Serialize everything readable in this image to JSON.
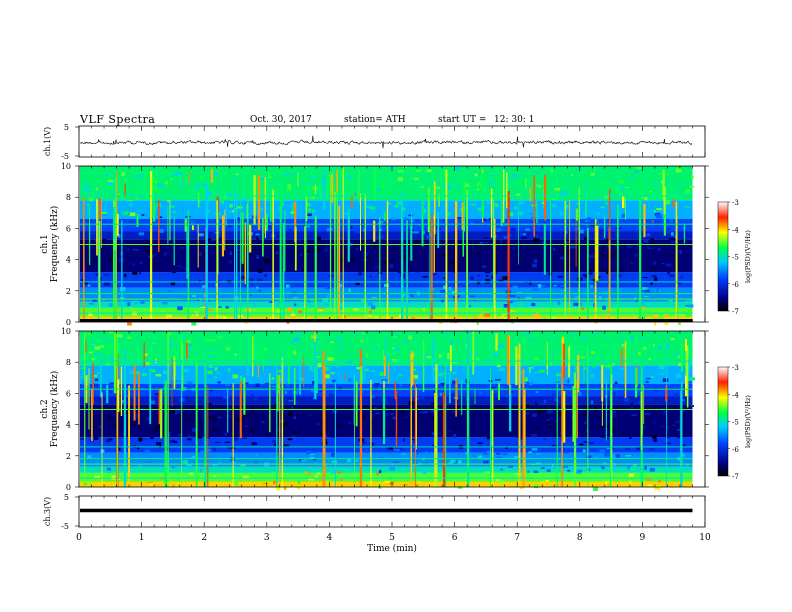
{
  "header": {
    "title": "VLF  Spectra",
    "date": "Oct. 30, 2017",
    "station": "station= ATH",
    "start_label": "start  UT  =",
    "start_time": "12: 30: 1"
  },
  "chart_data": [
    {
      "type": "line",
      "panel": "waveform ch1",
      "ylabel": "ch.1(V)",
      "ylim": [
        -5,
        5
      ],
      "yticks": [
        "5",
        "-5"
      ],
      "xlim": [
        0,
        10
      ],
      "series": [
        {
          "color": "#000000",
          "baseline": 0,
          "amplitude": 0.6
        }
      ]
    },
    {
      "type": "heatmap",
      "panel": "spectrogram ch1",
      "ylabel": "Frequency (kHz)",
      "channel_label": "ch.1",
      "ylim": [
        0,
        10
      ],
      "yticks": [
        "0",
        "2",
        "4",
        "6",
        "8",
        "10"
      ],
      "xlim": [
        0,
        10
      ],
      "colorbar": {
        "label": "log(PSD)(V²/Hz)",
        "range": [
          -7,
          -3
        ],
        "ticks": [
          "-3",
          "-4",
          "-5",
          "-6",
          "-7"
        ]
      }
    },
    {
      "type": "heatmap",
      "panel": "spectrogram ch2",
      "ylabel": "Frequency (kHz)",
      "channel_label": "ch.2",
      "ylim": [
        0,
        10
      ],
      "yticks": [
        "0",
        "2",
        "4",
        "6",
        "8",
        "10"
      ],
      "xlim": [
        0,
        10
      ],
      "colorbar": {
        "label": "log(PSD)(V²/Hz)",
        "range": [
          -7,
          -3
        ],
        "ticks": [
          "-3",
          "-4",
          "-5",
          "-6",
          "-7"
        ]
      }
    },
    {
      "type": "line",
      "panel": "waveform ch3",
      "ylabel": "ch.3(V)",
      "ylim": [
        -5,
        5
      ],
      "yticks": [
        "5",
        "-5"
      ],
      "xlim": [
        0,
        10
      ],
      "series": [
        {
          "color": "#000000",
          "baseline": 0,
          "amplitude": 0.05
        }
      ]
    }
  ],
  "x_axis": {
    "label": "Time  (min)",
    "ticks": [
      "0",
      "1",
      "2",
      "3",
      "4",
      "5",
      "6",
      "7",
      "8",
      "9",
      "10"
    ],
    "data_end": 9.8
  }
}
